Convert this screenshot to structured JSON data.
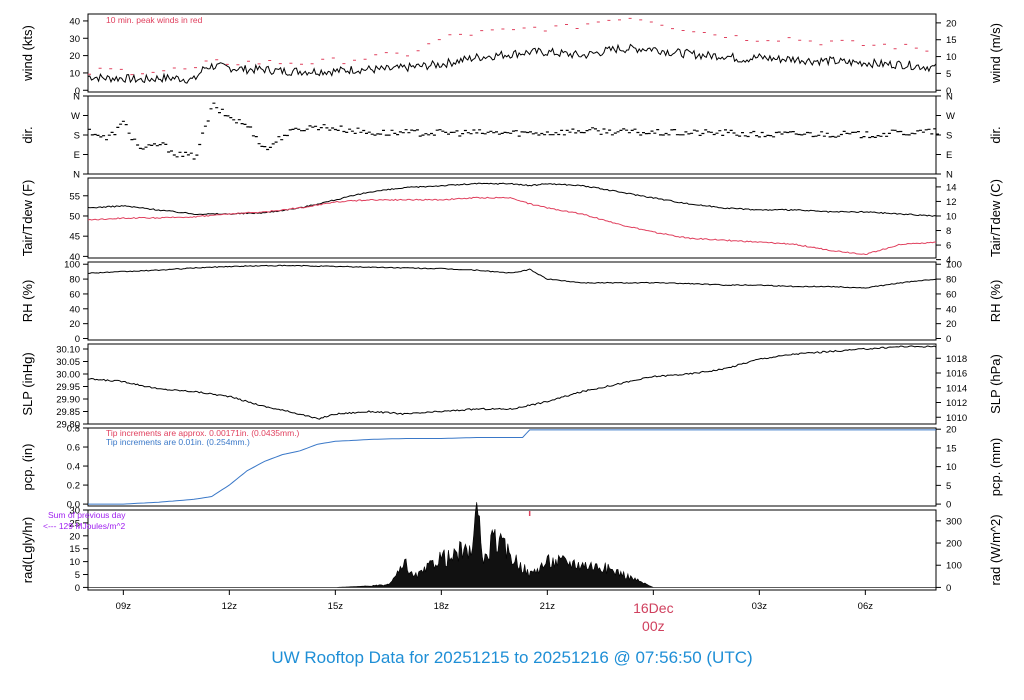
{
  "colors": {
    "line": "#000000",
    "red": "#e0405e",
    "blue": "#3a78c8",
    "purple": "#a020f0",
    "title": "#1f8fd6",
    "dateLabel": "#d0405e"
  },
  "title": {
    "prefix": "UW Rooftop Data for",
    "start": "20251215",
    "sep": "to",
    "end": "20251216 @ 07:56:50",
    "tz": "(UTC)"
  },
  "date_label": {
    "day": "16Dec",
    "time": "00z"
  },
  "chart_data": [
    {
      "type": "line",
      "ylabel": "wind (kts)",
      "ylabel_right": "wind (m/s)",
      "ylim": [
        -1,
        44
      ],
      "yticks": [
        0,
        10,
        20,
        30,
        40
      ],
      "rticks_labels": [
        "0",
        "5",
        "10",
        "15",
        "20"
      ],
      "rticks_vals": [
        0,
        9.72,
        19.44,
        29.16,
        38.88
      ],
      "annotation": "10 min. peak winds in red",
      "x": [
        0,
        0.5,
        1,
        1.5,
        2,
        2.5,
        3,
        3.3,
        3.5,
        4,
        4.5,
        5,
        5.5,
        6,
        6.5,
        7,
        7.5,
        8,
        8.5,
        9,
        9.5,
        10,
        10.5,
        11,
        11.5,
        12,
        12.5,
        13,
        13.5,
        14,
        14.5,
        15,
        15.5,
        16,
        16.5,
        17,
        17.5,
        18,
        18.5,
        19,
        19.5,
        20,
        20.5,
        21,
        21.5,
        22,
        22.5,
        23,
        23.5,
        24
      ],
      "series": [
        {
          "values": [
            8,
            7,
            7,
            6,
            7,
            7,
            6,
            13,
            14,
            13,
            12,
            12,
            11,
            11,
            11,
            11,
            12,
            12,
            12,
            13,
            14,
            15,
            17,
            19,
            20,
            21,
            22,
            22,
            21,
            20,
            22,
            24,
            24,
            24,
            22,
            21,
            20,
            20,
            18,
            19,
            18,
            18,
            17,
            17,
            16,
            16,
            15,
            15,
            14,
            13
          ]
        },
        {
          "values": [
            10,
            12,
            11,
            11,
            11,
            12,
            12,
            15,
            16,
            16,
            16,
            16,
            16,
            16,
            16,
            17,
            18,
            19,
            20,
            21,
            25,
            30,
            32,
            33,
            34,
            34,
            36,
            36,
            36,
            38,
            40,
            42,
            42,
            40,
            37,
            35,
            33,
            32,
            30,
            30,
            30,
            30,
            28,
            28,
            27,
            26,
            26,
            25,
            24,
            23
          ],
          "style": "peak"
        }
      ]
    },
    {
      "type": "scatter",
      "ylabel": "dir.",
      "ylabel_right": "dir.",
      "ylim": [
        0,
        360
      ],
      "yticks_labels": [
        "N",
        "E",
        "S",
        "W",
        "N"
      ],
      "yticks": [
        0,
        90,
        180,
        270,
        360
      ],
      "x": [
        0,
        0.5,
        1,
        1.2,
        1.5,
        2,
        2.5,
        3,
        3.5,
        3.6,
        4,
        4.5,
        5,
        5.2,
        5.5,
        6,
        6.5,
        7,
        7.5,
        8,
        8.5,
        9,
        10,
        11,
        12,
        13,
        14,
        15,
        16,
        17,
        18,
        19,
        20,
        21,
        22,
        23,
        24
      ],
      "values": [
        200,
        160,
        240,
        170,
        110,
        140,
        90,
        80,
        320,
        300,
        260,
        220,
        110,
        140,
        180,
        210,
        220,
        210,
        200,
        190,
        190,
        190,
        190,
        190,
        190,
        190,
        200,
        195,
        190,
        190,
        190,
        180,
        185,
        185,
        180,
        190,
        195
      ]
    },
    {
      "type": "line",
      "ylabel": "Tair/Tdew (F)",
      "ylabel_right": "Tair/Tdew (C)",
      "ylim": [
        39.6,
        59.4
      ],
      "yticks": [
        40,
        45,
        50,
        55
      ],
      "rticks_labels": [
        "4",
        "6",
        "8",
        "10",
        "12",
        "14"
      ],
      "rticks_vals": [
        39.2,
        42.8,
        46.4,
        50,
        53.6,
        57.2
      ],
      "x": [
        0,
        1,
        2,
        3,
        4,
        5,
        6,
        7,
        8,
        9,
        10,
        11,
        12,
        12.5,
        13,
        14,
        15,
        16,
        17,
        18,
        19,
        20,
        21,
        22,
        23,
        24
      ],
      "series": [
        {
          "name": "Tair",
          "values": [
            52,
            52.5,
            51.5,
            50.5,
            50.5,
            50.8,
            52,
            54,
            56,
            57,
            57.5,
            58,
            58,
            57.5,
            58,
            57.5,
            56,
            54.5,
            53,
            52,
            51.5,
            51.5,
            51,
            51,
            50.5,
            50
          ]
        },
        {
          "name": "Tdew",
          "values": [
            49,
            49.5,
            49.5,
            49.8,
            50.5,
            51,
            52,
            53.5,
            54,
            54,
            54,
            54.5,
            54.5,
            53,
            52,
            50.5,
            48,
            46,
            44.5,
            44,
            43.5,
            43,
            41.5,
            40.5,
            43,
            43.5
          ]
        }
      ]
    },
    {
      "type": "line",
      "ylabel": "RH (%)",
      "ylabel_right": "RH (%)",
      "ylim": [
        -2,
        103
      ],
      "yticks": [
        0,
        20,
        40,
        60,
        80,
        100
      ],
      "rticks_labels": [
        "0",
        "20",
        "40",
        "60",
        "80",
        "100"
      ],
      "rticks_vals": [
        0,
        20,
        40,
        60,
        80,
        100
      ],
      "x": [
        0,
        1,
        2,
        3,
        4,
        5,
        6,
        7,
        8,
        9,
        10,
        11,
        12,
        12.5,
        13,
        14,
        15,
        16,
        17,
        18,
        19,
        20,
        21,
        22,
        23,
        24
      ],
      "series": [
        {
          "values": [
            88,
            90,
            92,
            95,
            97,
            98,
            98,
            97,
            96,
            95,
            94,
            92,
            88,
            93,
            80,
            75,
            75,
            75,
            74,
            72,
            72,
            70,
            70,
            68,
            75,
            80
          ]
        }
      ]
    },
    {
      "type": "line",
      "ylabel": "SLP (inHg)",
      "ylabel_right": "SLP (hPa)",
      "ylim": [
        29.8,
        30.12
      ],
      "yticks": [
        29.8,
        29.85,
        29.9,
        29.95,
        30.0,
        30.05,
        30.1
      ],
      "yticks_labels": [
        "29.80",
        "29.85",
        "29.90",
        "29.95",
        "30.00",
        "30.05",
        "30.10"
      ],
      "rticks_labels": [
        "1010",
        "1012",
        "1014",
        "1016",
        "1018"
      ],
      "rticks_vals": [
        29.827,
        29.886,
        29.945,
        30.004,
        30.063
      ],
      "x": [
        0,
        1,
        2,
        3,
        4,
        5,
        6,
        6.5,
        7,
        8,
        9,
        10,
        11,
        12,
        13,
        14,
        15,
        16,
        17,
        18,
        19,
        20,
        21,
        22,
        23,
        24
      ],
      "series": [
        {
          "values": [
            29.98,
            29.97,
            29.94,
            29.93,
            29.91,
            29.87,
            29.84,
            29.82,
            29.84,
            29.85,
            29.84,
            29.85,
            29.86,
            29.86,
            29.89,
            29.93,
            29.96,
            29.99,
            30.0,
            30.02,
            30.06,
            30.08,
            30.09,
            30.1,
            30.11,
            30.11
          ]
        }
      ]
    },
    {
      "type": "line",
      "ylabel": "pcp. (in)",
      "ylabel_right": "pcp. (mm)",
      "ylim": [
        -0.02,
        0.8
      ],
      "yticks": [
        0,
        0.2,
        0.4,
        0.6,
        0.8
      ],
      "yticks_labels": [
        "0.0",
        "0.2",
        "0.4",
        "0.6",
        "0.8"
      ],
      "rticks_labels": [
        "0",
        "5",
        "10",
        "15",
        "20"
      ],
      "rticks_vals": [
        0,
        0.1969,
        0.3937,
        0.5906,
        0.7874
      ],
      "annotations": [
        "Tip increments are approx. 0.00171in. (0.0435mm.)",
        "Tip increments are 0.01in. (0.254mm.)"
      ],
      "x": [
        0,
        1,
        2,
        3,
        3.5,
        4,
        4.5,
        5,
        5.5,
        6,
        6.5,
        7,
        8,
        9,
        10,
        11,
        12,
        12.3,
        12.5,
        13,
        14,
        15,
        16,
        17,
        18,
        19,
        20,
        21,
        22,
        23,
        24
      ],
      "series": [
        {
          "values": [
            0,
            0,
            0.02,
            0.05,
            0.08,
            0.2,
            0.35,
            0.45,
            0.52,
            0.56,
            0.63,
            0.66,
            0.68,
            0.69,
            0.69,
            0.7,
            0.7,
            0.7,
            0.78,
            0.78,
            0.78,
            0.78,
            0.78,
            0.78,
            0.78,
            0.78,
            0.78,
            0.78,
            0.78,
            0.78,
            0.78
          ]
        }
      ]
    },
    {
      "type": "area",
      "ylabel": "rad(Lgly/hr)",
      "ylabel_right": "rad (W/m^2)",
      "ylim": [
        -1,
        30
      ],
      "yticks": [
        0,
        5,
        10,
        15,
        20,
        25,
        30
      ],
      "rticks_labels": [
        "0",
        "100",
        "200",
        "300"
      ],
      "rticks_vals": [
        0,
        8.6,
        17.2,
        25.8
      ],
      "annotations": [
        "Sum of previous day",
        "<--- 129 MJoules/m^2"
      ],
      "x": [
        0,
        7.0,
        7.5,
        8.0,
        8.5,
        9.0,
        9.2,
        9.5,
        9.8,
        10.0,
        10.3,
        10.5,
        10.8,
        11.0,
        11.2,
        11.5,
        12.0,
        12.3,
        12.5,
        13.0,
        13.5,
        14.0,
        14.5,
        15.0,
        15.5,
        16.0,
        24
      ],
      "series": [
        {
          "values": [
            0,
            0,
            0.3,
            0.6,
            1,
            9,
            4,
            6,
            10,
            12,
            11,
            14,
            13,
            29,
            10,
            19,
            12,
            8,
            5,
            10,
            10,
            9,
            8,
            6,
            3,
            0,
            0
          ]
        }
      ]
    }
  ],
  "x_axis": {
    "ticks": [
      "09z",
      "12z",
      "15z",
      "18z",
      "21z",
      "03z",
      "06z"
    ],
    "tick_hours": [
      1,
      4,
      7,
      10,
      13,
      19,
      22
    ]
  }
}
